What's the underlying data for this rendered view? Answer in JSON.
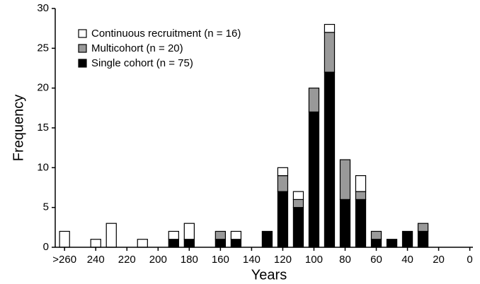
{
  "chart_data": {
    "type": "bar",
    "stacked": true,
    "x_label": "Years",
    "y_label": "Frequency",
    "x": [
      260,
      240,
      230,
      210,
      190,
      180,
      160,
      150,
      130,
      120,
      110,
      100,
      90,
      80,
      70,
      60,
      50,
      40,
      30
    ],
    "series": [
      {
        "name": "Single cohort (n = 75)",
        "color": "#000000",
        "values": [
          0,
          0,
          0,
          0,
          1,
          1,
          1,
          1,
          2,
          7,
          5,
          17,
          22,
          6,
          6,
          1,
          1,
          2,
          2
        ]
      },
      {
        "name": "Multicohort (n = 20)",
        "color": "#999999",
        "values": [
          0,
          0,
          0,
          0,
          0,
          0,
          1,
          0,
          0,
          2,
          1,
          3,
          5,
          5,
          1,
          1,
          0,
          0,
          1
        ]
      },
      {
        "name": "Continuous recruitment (n = 16)",
        "color": "#ffffff",
        "values": [
          2,
          1,
          3,
          1,
          1,
          2,
          0,
          1,
          0,
          1,
          1,
          0,
          1,
          0,
          2,
          0,
          0,
          0,
          0
        ]
      }
    ],
    "xlim": [
      266,
      -2
    ],
    "xticks": [
      {
        "value": 260,
        "label": ">260"
      },
      240,
      220,
      200,
      180,
      160,
      140,
      120,
      100,
      80,
      60,
      40,
      20,
      0
    ],
    "ylim": [
      0,
      30
    ],
    "yticks": [
      0,
      5,
      10,
      15,
      20,
      25,
      30
    ],
    "legend": "upper left"
  }
}
